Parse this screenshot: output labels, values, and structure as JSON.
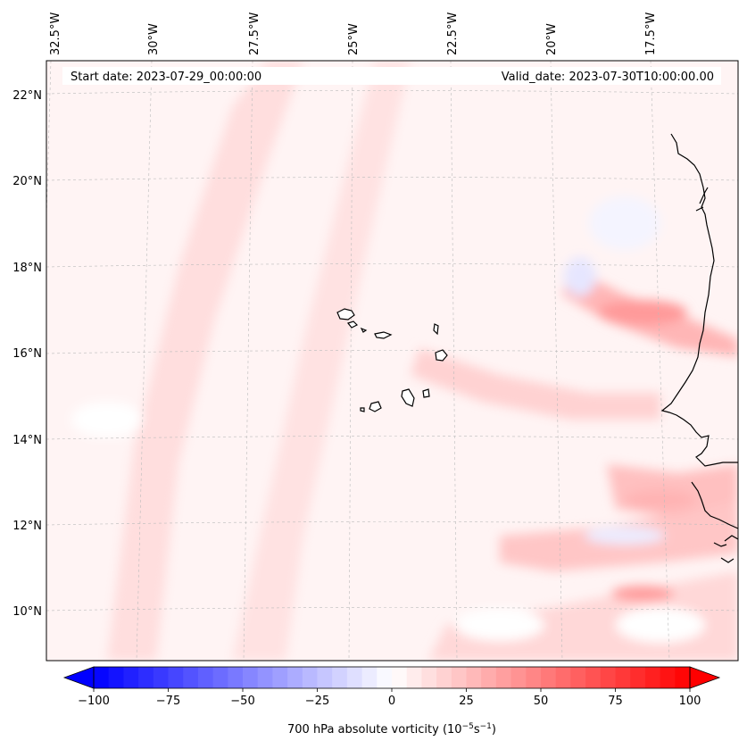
{
  "map": {
    "start_date": "Start date: 2023-07-29_00:00:00",
    "valid_date": "Valid_date: 2023-07-30T10:00:00.00",
    "lon_labels": [
      "32.5°W",
      "30°W",
      "27.5°W",
      "25°W",
      "22.5°W",
      "20°W",
      "17.5°W"
    ],
    "lat_labels": [
      "22°N",
      "20°N",
      "18°N",
      "16°N",
      "14°N",
      "12°N",
      "10°N"
    ]
  },
  "colorbar": {
    "label": "700 hPa absolute vorticity (10",
    "label_exp1": "−5",
    "label_mid": "s",
    "label_exp2": "−1",
    "label_end": ")",
    "ticks": [
      "−100",
      "−75",
      "−50",
      "−25",
      "0",
      "25",
      "50",
      "75",
      "100"
    ],
    "min": -100,
    "max": 100,
    "levels": 40,
    "negative_color": "#0000ff",
    "positive_color": "#ff0000"
  }
}
